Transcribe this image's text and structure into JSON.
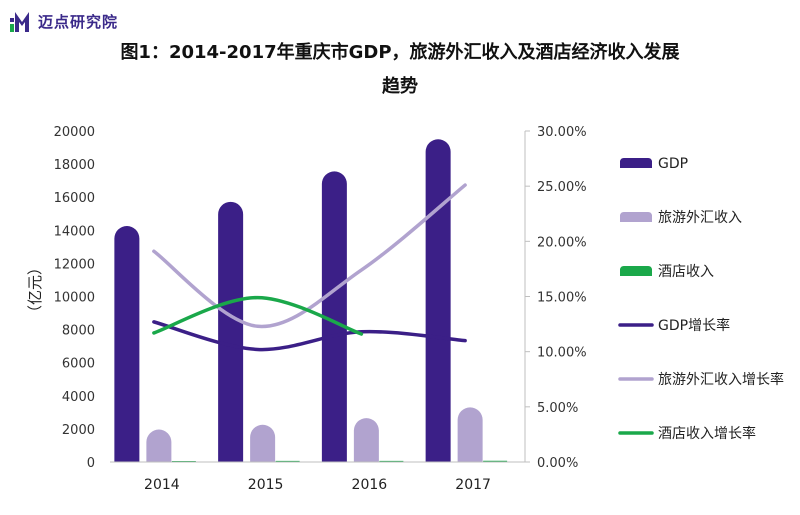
{
  "logo": {
    "text": "迈点研究院"
  },
  "chart_data": {
    "type": "bar",
    "title_line1": "图1：2014-2017年重庆市GDP，旅游外汇收入及酒店经济收入发展",
    "title_line2": "趋势",
    "categories": [
      "2014",
      "2015",
      "2016",
      "2017"
    ],
    "ylabel_left": "（亿元）",
    "ylim_left": [
      0,
      20000
    ],
    "yticks_left": [
      "0",
      "2000",
      "4000",
      "6000",
      "8000",
      "10000",
      "12000",
      "14000",
      "16000",
      "18000",
      "20000"
    ],
    "ylim_right": [
      0,
      0.3
    ],
    "yticks_right": [
      "0.00%",
      "5.00%",
      "10.00%",
      "15.00%",
      "20.00%",
      "25.00%",
      "30.00%"
    ],
    "bar_series": [
      {
        "name": "GDP",
        "color": "#3b1f87",
        "values": [
          14260,
          15720,
          17560,
          19500
        ]
      },
      {
        "name": "旅游外汇收入",
        "color": "#b1a3cf",
        "values": [
          1960,
          2250,
          2650,
          3300
        ]
      },
      {
        "name": "酒店收入",
        "color": "#1aa84a",
        "values": [
          60,
          65,
          70,
          75
        ]
      }
    ],
    "line_series": [
      {
        "name": "GDP增长率",
        "color": "#3b1f87",
        "values": [
          0.127,
          0.102,
          0.118,
          0.11
        ]
      },
      {
        "name": "旅游外汇收入增长率",
        "color": "#b1a3cf",
        "values": [
          0.191,
          0.123,
          0.174,
          0.251
        ]
      },
      {
        "name": "酒店收入增长率",
        "color": "#1aa84a",
        "values": [
          0.117,
          0.149,
          0.116,
          null
        ]
      }
    ],
    "legend_position": "right",
    "grid": false
  }
}
